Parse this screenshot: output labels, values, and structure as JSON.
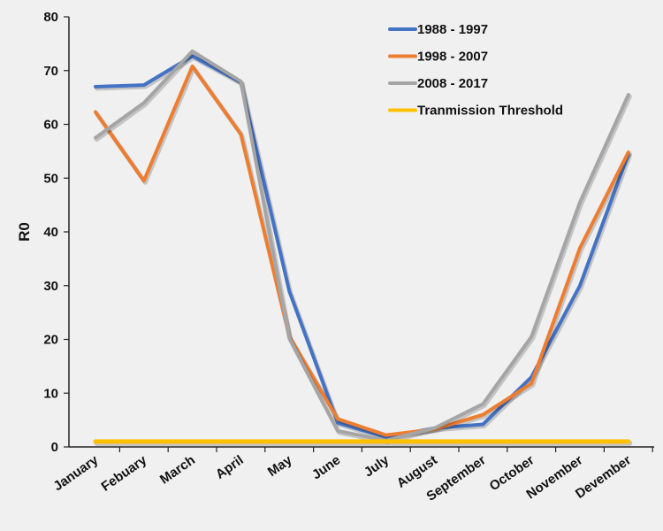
{
  "chart_data": {
    "type": "line",
    "title": "",
    "xlabel": "",
    "ylabel": "R0",
    "ylim": [
      0,
      80
    ],
    "yticks": [
      0,
      10,
      20,
      30,
      40,
      50,
      60,
      70,
      80
    ],
    "grid": false,
    "legend_position": "top-right",
    "categories": [
      "January",
      "Febuary",
      "March",
      "April",
      "May",
      "June",
      "July",
      "August",
      "September",
      "October",
      "November",
      "Devember"
    ],
    "series": [
      {
        "name": "1988 - 1997",
        "color": "#4472c4",
        "values": [
          67,
          67.3,
          72.7,
          67.8,
          29,
          4.5,
          1.8,
          3.5,
          4.2,
          13,
          30,
          54.5
        ]
      },
      {
        "name": "1998 - 2007",
        "color": "#ed7d31",
        "values": [
          62.3,
          49.5,
          70.8,
          58.2,
          20.5,
          5.2,
          2.2,
          3.3,
          6,
          11.8,
          37,
          54.8
        ]
      },
      {
        "name": "2008 - 2017",
        "color": "#a5a5a5",
        "values": [
          57.5,
          64,
          73.6,
          68,
          20.2,
          3,
          1.2,
          3.5,
          8,
          20.5,
          45.5,
          65.5
        ]
      },
      {
        "name": "Tranmission Threshold",
        "color": "#ffc000",
        "values": [
          1,
          1,
          1,
          1,
          1,
          1,
          1,
          1,
          1,
          1,
          1,
          1
        ]
      }
    ]
  }
}
